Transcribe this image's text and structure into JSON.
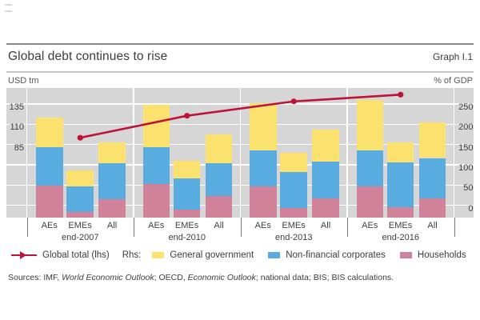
{
  "chart_data": {
    "type": "stacked-bar+line",
    "title": "Global debt continues to rise",
    "graph_label": "Graph I.1",
    "left_axis": {
      "unit": "USD tm",
      "ticks": [
        135,
        110,
        85
      ],
      "maps_to_right": [
        250,
        200,
        150
      ]
    },
    "right_axis": {
      "unit": "% of GDP",
      "ticks": [
        250,
        200,
        150,
        100,
        50,
        0
      ],
      "range": [
        0,
        290
      ]
    },
    "groups": [
      "end-2007",
      "end-2010",
      "end-2013",
      "end-2016"
    ],
    "categories": [
      "AEs",
      "EMEs",
      "All"
    ],
    "bars_axis": "rhs",
    "stack_order_bottom_to_top": [
      "Households",
      "Non-financial corporates",
      "General government"
    ],
    "series": [
      {
        "name": "Households",
        "color": "#d0829b",
        "values_by_group": [
          [
            79,
            14,
            45
          ],
          [
            83,
            20,
            53
          ],
          [
            76,
            24,
            48
          ],
          [
            76,
            26,
            47
          ]
        ]
      },
      {
        "name": "Non-financial corporates",
        "color": "#58acdf",
        "values_by_group": [
          [
            94,
            62,
            89
          ],
          [
            90,
            76,
            81
          ],
          [
            89,
            89,
            91
          ],
          [
            89,
            110,
            100
          ]
        ]
      },
      {
        "name": "General government",
        "color": "#fbe26f",
        "values_by_group": [
          [
            74,
            41,
            52
          ],
          [
            106,
            44,
            72
          ],
          [
            118,
            47,
            78
          ],
          [
            126,
            50,
            88
          ]
        ]
      }
    ],
    "line_series": {
      "name": "Global total (lhs)",
      "axis": "lhs",
      "unit": "USD tm",
      "color": "#be1238",
      "values": [
        97,
        123,
        140,
        148
      ]
    },
    "legend_position": "bottom",
    "plot_background": "#d6d6d6",
    "grid_color": "#ffffff"
  },
  "legend": {
    "line_label": "Global total (lhs)",
    "rhs_prefix": "Rhs:",
    "items": [
      {
        "label": "General government"
      },
      {
        "label": "Non-financial corporates"
      },
      {
        "label": "Households"
      }
    ]
  },
  "sources": {
    "parts": [
      {
        "text": "Sources: IMF, "
      },
      {
        "text": "World Economic Outlook",
        "italic": true
      },
      {
        "text": "; OECD, "
      },
      {
        "text": "Economic Outlook",
        "italic": true
      },
      {
        "text": "; national data; BIS; BIS calculations."
      }
    ]
  }
}
